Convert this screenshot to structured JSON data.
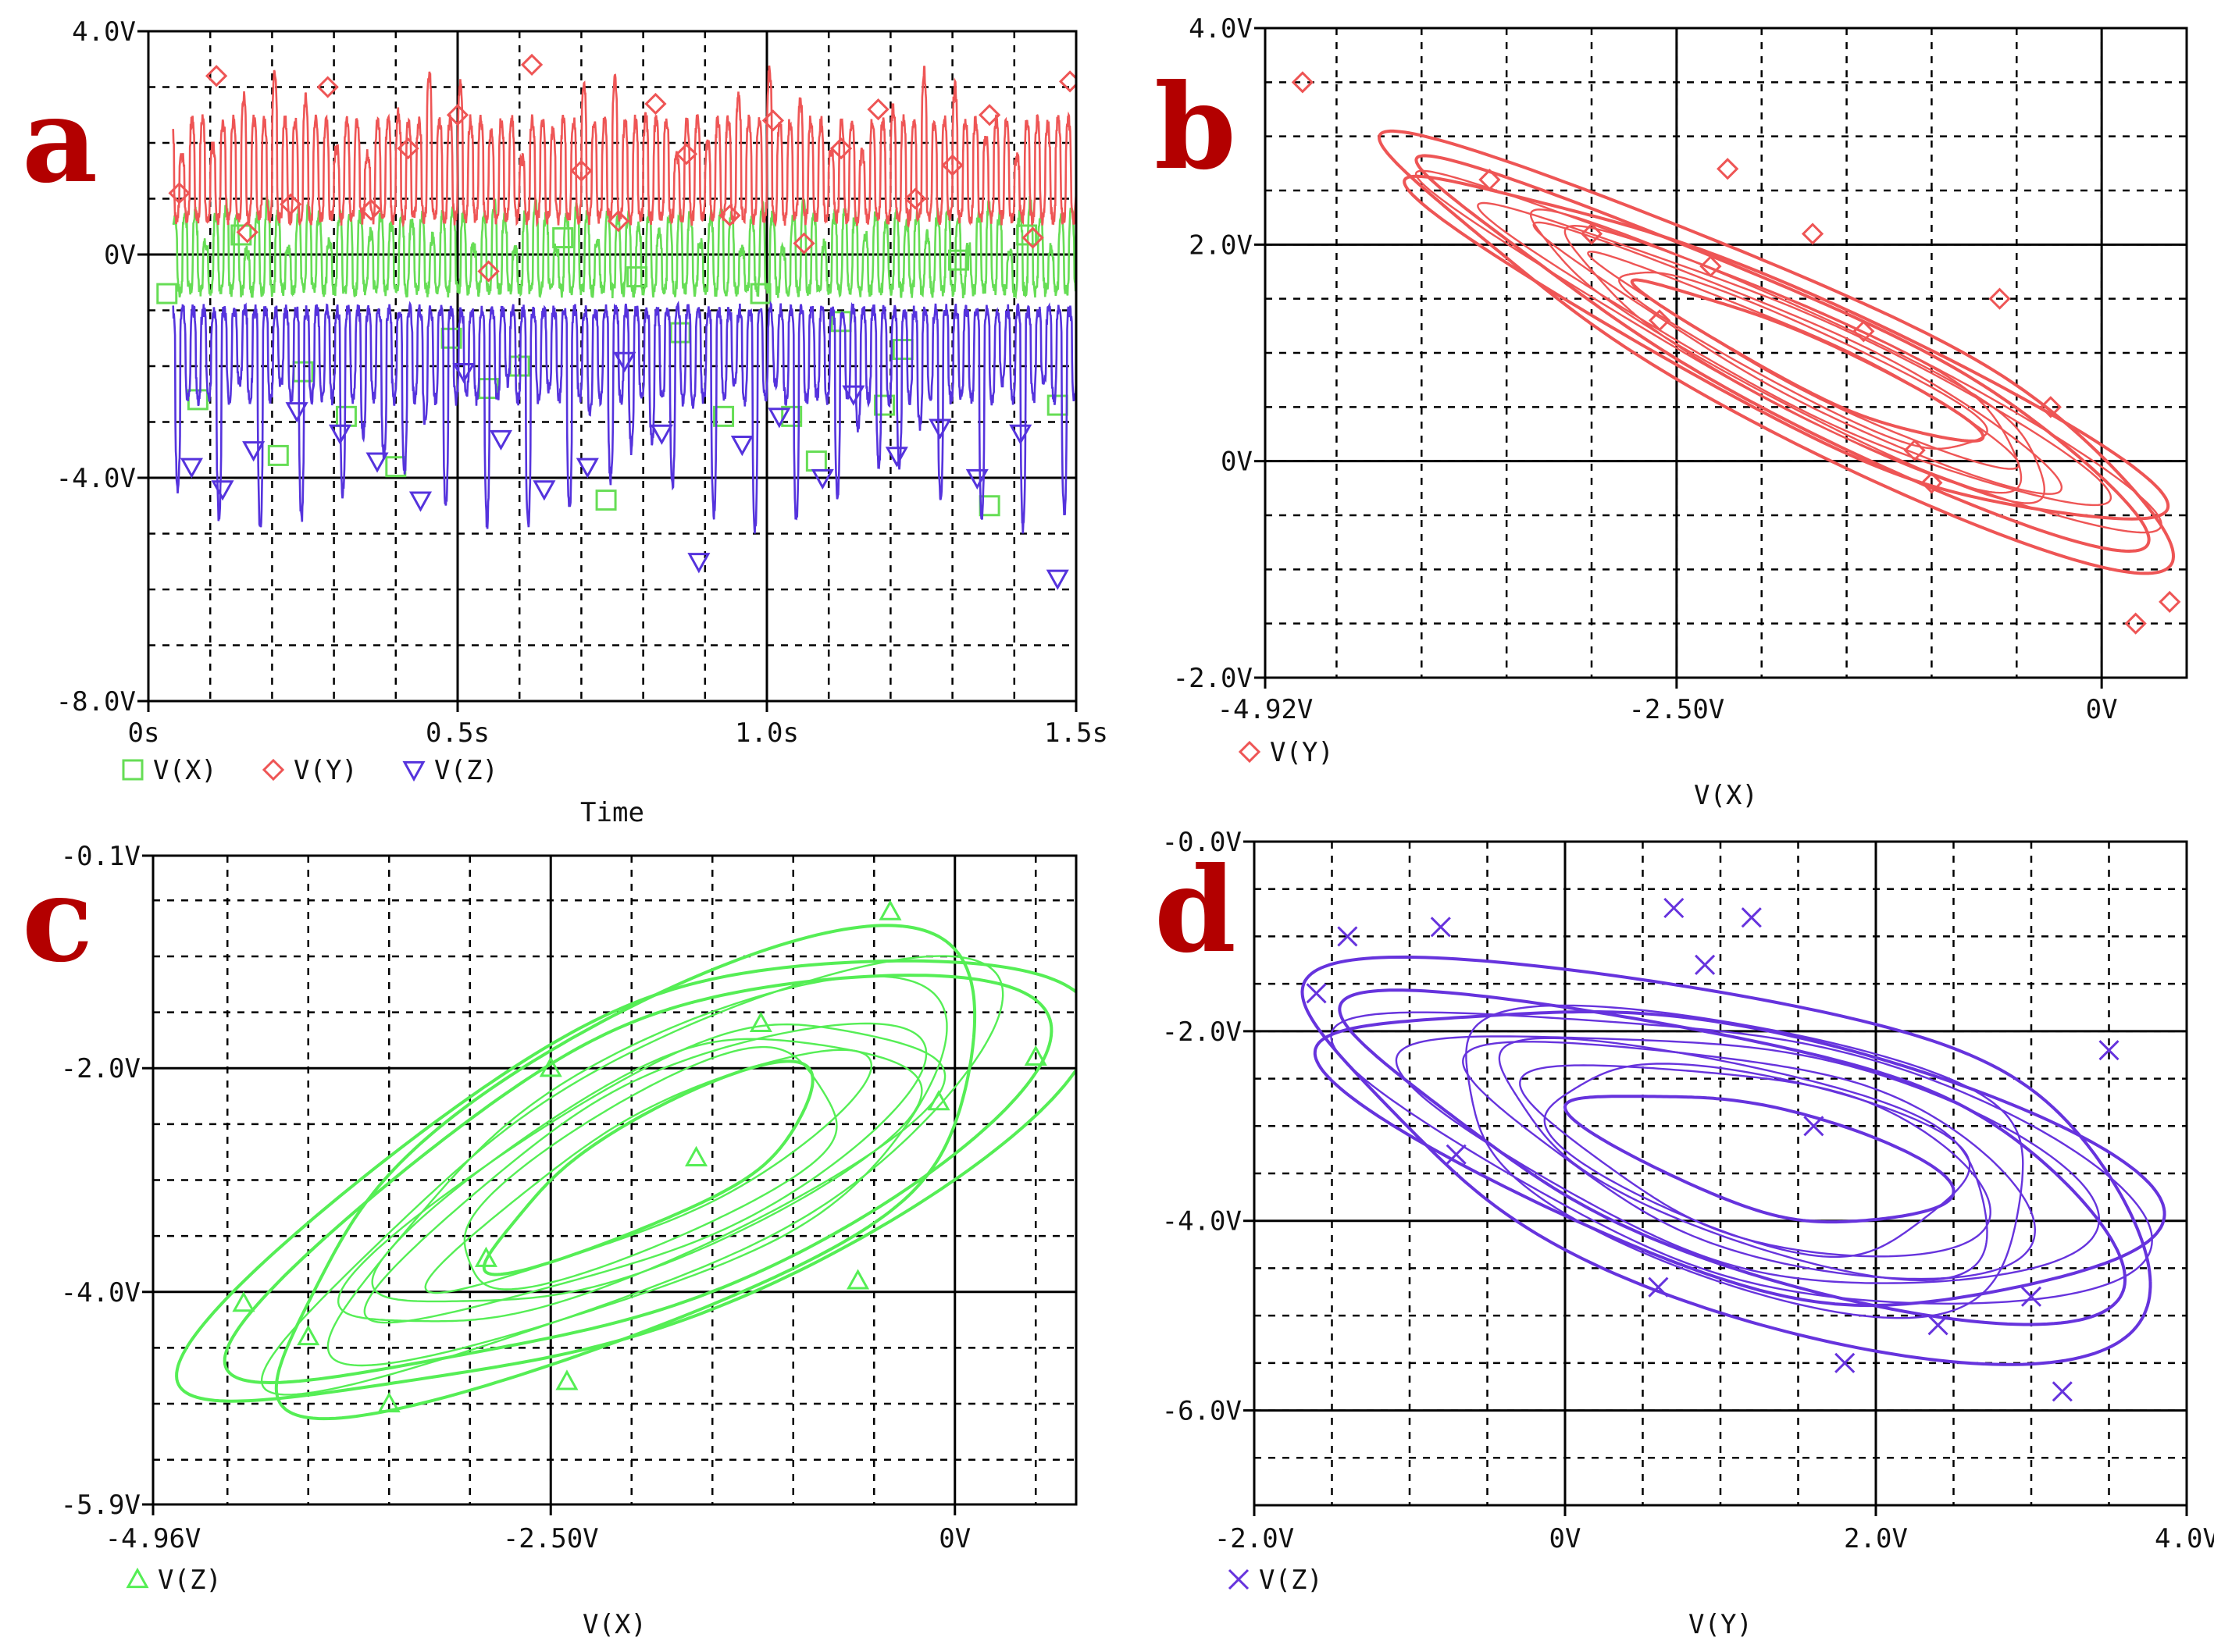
{
  "chart_data": [
    {
      "type": "line",
      "letter": "a",
      "xlabel": "Time",
      "ylabel": "",
      "xlim": [
        0,
        1.5
      ],
      "ylim": [
        -8,
        4
      ],
      "x_ticks": [
        0,
        0.5,
        1.0,
        1.5
      ],
      "x_tick_labels": [
        "0s",
        "0.5s",
        "1.0s",
        "1.5s"
      ],
      "y_ticks": [
        -8,
        -4,
        0,
        4
      ],
      "y_tick_labels": [
        "-8.0V",
        "-4.0V",
        "0V",
        "4.0V"
      ],
      "grid": "dashed",
      "legend_position": "bottom-left",
      "series": [
        {
          "name": "V(X)",
          "color": "#66dd55",
          "marker": "square",
          "signal": {
            "center": -0.15,
            "amp": 0.85,
            "tip_amp": 1.1,
            "tip_every": 2,
            "phase": 0.7
          },
          "markers": [
            [
              0.03,
              -0.7
            ],
            [
              0.08,
              -2.6
            ],
            [
              0.15,
              0.35
            ],
            [
              0.21,
              -3.6
            ],
            [
              0.25,
              -2.1
            ],
            [
              0.32,
              -2.9
            ],
            [
              0.4,
              -3.8
            ],
            [
              0.49,
              -1.5
            ],
            [
              0.55,
              -2.4
            ],
            [
              0.6,
              -2.0
            ],
            [
              0.67,
              0.3
            ],
            [
              0.74,
              -4.4
            ],
            [
              0.79,
              -0.4
            ],
            [
              0.86,
              -1.4
            ],
            [
              0.93,
              -2.9
            ],
            [
              0.99,
              -0.7
            ],
            [
              1.04,
              -2.9
            ],
            [
              1.08,
              -3.7
            ],
            [
              1.12,
              -1.2
            ],
            [
              1.19,
              -2.7
            ],
            [
              1.22,
              -1.7
            ],
            [
              1.31,
              -0.1
            ],
            [
              1.36,
              -4.5
            ],
            [
              1.42,
              0.35
            ],
            [
              1.47,
              -2.7
            ]
          ]
        },
        {
          "name": "V(Y)",
          "color": "#ee5555",
          "marker": "diamond",
          "signal": {
            "center": 1.3,
            "amp": 1.1,
            "tip_amp": 2.0,
            "tip_every": 3,
            "phase": 0.0
          },
          "markers": [
            [
              0.05,
              1.1
            ],
            [
              0.11,
              3.2
            ],
            [
              0.16,
              0.4
            ],
            [
              0.23,
              0.9
            ],
            [
              0.29,
              3.0
            ],
            [
              0.36,
              0.8
            ],
            [
              0.42,
              1.9
            ],
            [
              0.5,
              2.5
            ],
            [
              0.55,
              -0.3
            ],
            [
              0.62,
              3.4
            ],
            [
              0.7,
              1.5
            ],
            [
              0.76,
              0.6
            ],
            [
              0.82,
              2.7
            ],
            [
              0.87,
              1.8
            ],
            [
              0.94,
              0.7
            ],
            [
              1.01,
              2.4
            ],
            [
              1.06,
              0.2
            ],
            [
              1.12,
              1.9
            ],
            [
              1.18,
              2.6
            ],
            [
              1.24,
              1.0
            ],
            [
              1.3,
              1.6
            ],
            [
              1.36,
              2.5
            ],
            [
              1.43,
              0.3
            ],
            [
              1.49,
              3.1
            ]
          ]
        },
        {
          "name": "V(Z)",
          "color": "#5533dd",
          "marker": "triangle-down",
          "signal": {
            "center": -1.6,
            "amp": 1.0,
            "tip_amp": 3.3,
            "tip_every": 2,
            "phase": 1.4
          },
          "markers": [
            [
              0.07,
              -3.8
            ],
            [
              0.12,
              -4.2
            ],
            [
              0.17,
              -3.5
            ],
            [
              0.24,
              -2.8
            ],
            [
              0.31,
              -3.2
            ],
            [
              0.37,
              -3.7
            ],
            [
              0.44,
              -4.4
            ],
            [
              0.51,
              -2.1
            ],
            [
              0.57,
              -3.3
            ],
            [
              0.64,
              -4.2
            ],
            [
              0.71,
              -3.8
            ],
            [
              0.77,
              -1.9
            ],
            [
              0.83,
              -3.2
            ],
            [
              0.89,
              -5.5
            ],
            [
              0.96,
              -3.4
            ],
            [
              1.02,
              -2.9
            ],
            [
              1.09,
              -4.0
            ],
            [
              1.14,
              -2.5
            ],
            [
              1.21,
              -3.6
            ],
            [
              1.28,
              -3.1
            ],
            [
              1.34,
              -4.0
            ],
            [
              1.41,
              -3.2
            ],
            [
              1.47,
              -5.8
            ]
          ]
        }
      ]
    },
    {
      "type": "line",
      "letter": "b",
      "xlabel": "V(X)",
      "ylabel": "",
      "xlim": [
        -4.92,
        0.5
      ],
      "ylim": [
        -2.0,
        4.0
      ],
      "x_ticks": [
        -4.92,
        -2.5,
        0
      ],
      "x_tick_labels": [
        "-4.92V",
        "-2.50V",
        "0V"
      ],
      "y_ticks": [
        -2.0,
        0,
        2.0,
        4.0
      ],
      "y_tick_labels": [
        "-2.0V",
        "0V",
        "2.0V",
        "4.0V"
      ],
      "grid": "dashed",
      "legend_position": "bottom-left",
      "series": [
        {
          "name": "V(Y)",
          "color": "#ee5555",
          "marker": "diamond",
          "orbit": {
            "cx": -1.9,
            "cy": 1.05,
            "a": 2.85,
            "b": 0.55,
            "angle_deg": -38
          },
          "markers": [
            [
              -4.7,
              3.5
            ],
            [
              -3.0,
              2.1
            ],
            [
              -2.2,
              2.7
            ],
            [
              -1.7,
              2.1
            ],
            [
              -0.6,
              1.5
            ],
            [
              -0.3,
              0.5
            ],
            [
              0.4,
              -1.3
            ],
            [
              -1.1,
              0.1
            ],
            [
              -2.3,
              1.8
            ],
            [
              -3.6,
              2.6
            ],
            [
              -1.0,
              -0.2
            ],
            [
              0.2,
              -1.5
            ],
            [
              -1.4,
              1.2
            ],
            [
              -2.6,
              1.3
            ]
          ]
        }
      ]
    },
    {
      "type": "line",
      "letter": "c",
      "xlabel": "V(X)",
      "ylabel": "",
      "xlim": [
        -4.96,
        0.75
      ],
      "ylim": [
        -5.9,
        -0.1
      ],
      "x_ticks": [
        -4.96,
        -2.5,
        0
      ],
      "x_tick_labels": [
        "-4.96V",
        "-2.50V",
        "0V"
      ],
      "y_ticks": [
        -5.9,
        -4.0,
        -2.0,
        -0.1
      ],
      "y_tick_labels": [
        "-5.9V",
        "-4.0V",
        "-2.0V",
        "-0.1V"
      ],
      "grid": "dashed",
      "legend_position": "bottom-left",
      "series": [
        {
          "name": "V(Z)",
          "color": "#55ee55",
          "marker": "triangle-up",
          "orbit": {
            "cx": -2.05,
            "cy": -3.05,
            "a": 3.05,
            "b": 1.15,
            "angle_deg": 38
          },
          "markers": [
            [
              -0.4,
              -0.6
            ],
            [
              0.5,
              -1.9
            ],
            [
              -2.5,
              -2.0
            ],
            [
              -1.6,
              -2.8
            ],
            [
              -2.9,
              -3.7
            ],
            [
              -4.4,
              -4.1
            ],
            [
              -3.5,
              -5.0
            ],
            [
              -2.4,
              -4.8
            ],
            [
              -0.6,
              -3.9
            ],
            [
              -1.2,
              -1.6
            ],
            [
              -0.1,
              -2.3
            ],
            [
              -4.0,
              -4.4
            ]
          ]
        }
      ]
    },
    {
      "type": "line",
      "letter": "d",
      "xlabel": "V(Y)",
      "ylabel": "",
      "xlim": [
        -2.0,
        4.0
      ],
      "ylim": [
        -7.0,
        0.0
      ],
      "x_ticks": [
        -2.0,
        0,
        2.0,
        4.0
      ],
      "x_tick_labels": [
        "-2.0V",
        "0V",
        "2.0V",
        "4.0V"
      ],
      "y_ticks": [
        -6.0,
        -4.0,
        -2.0,
        0.0
      ],
      "y_tick_labels": [
        "-6.0V",
        "-4.0V",
        "-2.0V",
        "-0.0V"
      ],
      "grid": "dashed",
      "legend_position": "bottom-left",
      "series": [
        {
          "name": "V(Z)",
          "color": "#6633dd",
          "marker": "x",
          "orbit": {
            "cx": 1.05,
            "cy": -3.2,
            "a": 3.0,
            "b": 1.5,
            "angle_deg": -28
          },
          "markers": [
            [
              -1.4,
              -1.0
            ],
            [
              -0.8,
              -0.9
            ],
            [
              0.7,
              -0.7
            ],
            [
              1.2,
              -0.8
            ],
            [
              3.5,
              -2.2
            ],
            [
              3.0,
              -4.8
            ],
            [
              1.8,
              -5.5
            ],
            [
              0.6,
              -4.7
            ],
            [
              -0.7,
              -3.3
            ],
            [
              -1.6,
              -1.6
            ],
            [
              2.4,
              -5.1
            ],
            [
              3.2,
              -5.8
            ],
            [
              1.6,
              -3.0
            ],
            [
              0.9,
              -1.3
            ]
          ]
        }
      ]
    }
  ]
}
